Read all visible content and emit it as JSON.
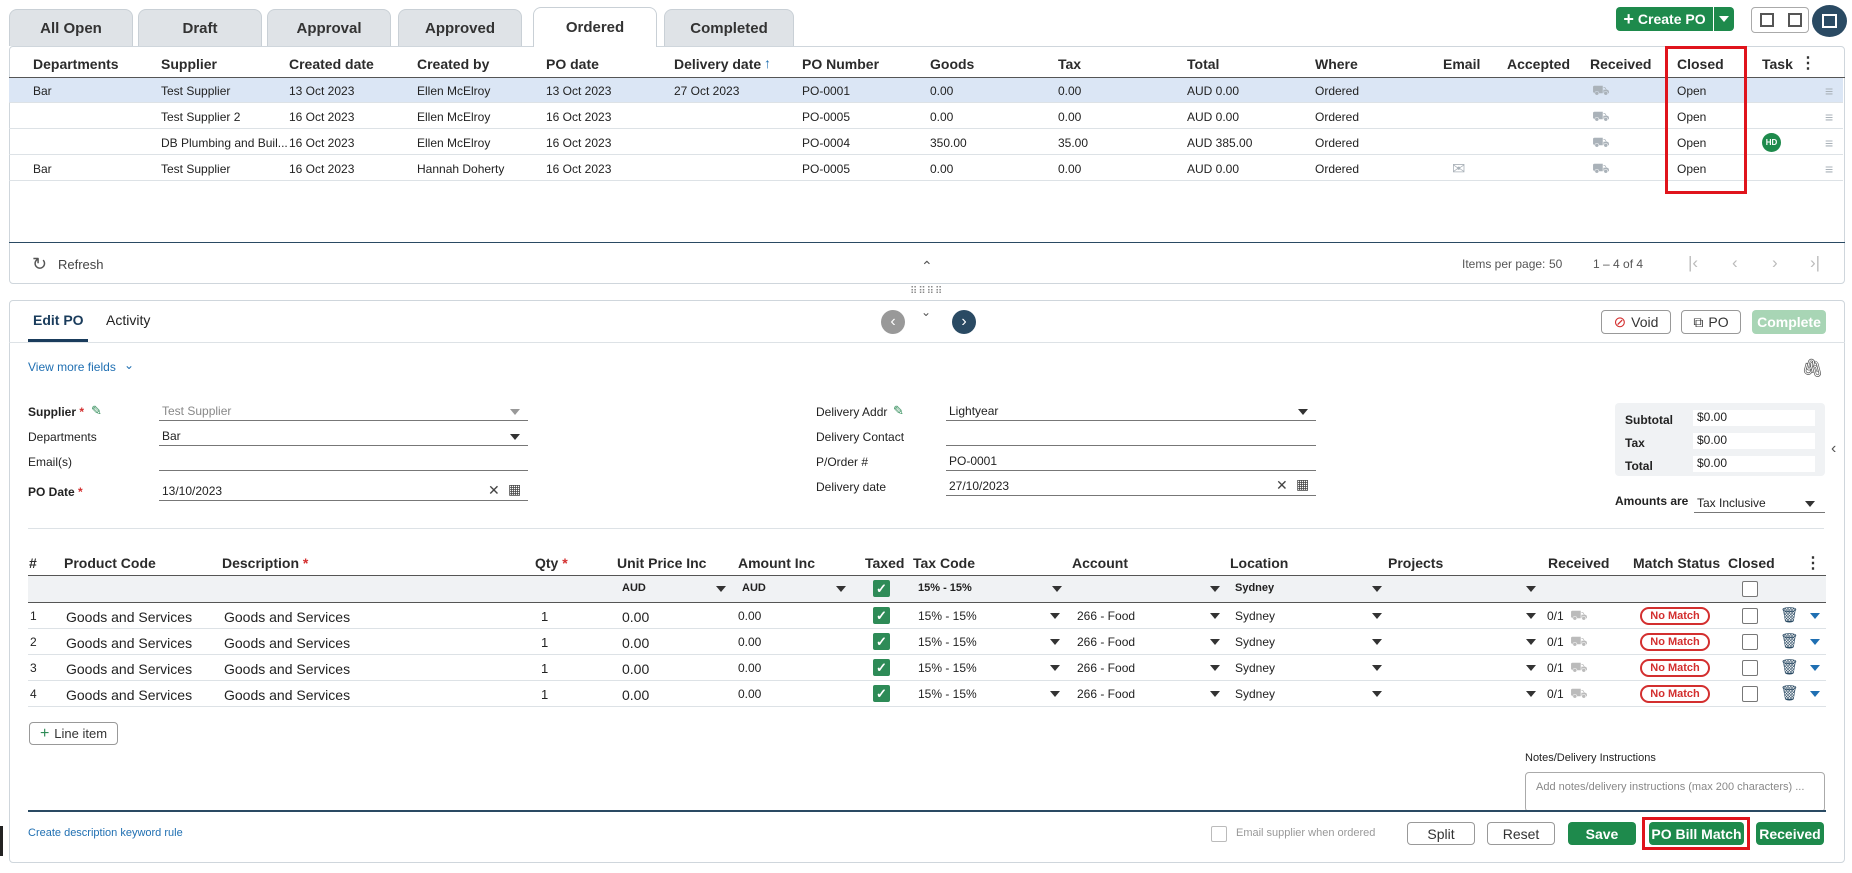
{
  "tabs": [
    "All Open",
    "Draft",
    "Approval",
    "Approved",
    "Ordered",
    "Completed"
  ],
  "active_tab": "Ordered",
  "create_po": "Create PO",
  "grid": {
    "headers": [
      "Departments",
      "Supplier",
      "Created date",
      "Created by",
      "PO date",
      "Delivery date",
      "PO Number",
      "Goods",
      "Tax",
      "Total",
      "Where",
      "Email",
      "Accepted",
      "Received",
      "Closed",
      "Task"
    ],
    "rows": [
      {
        "dept": "Bar",
        "supplier": "Test Supplier",
        "created": "13 Oct 2023",
        "by": "Ellen McElroy",
        "po_date": "13 Oct 2023",
        "delivery": "27 Oct 2023",
        "num": "PO-0001",
        "goods": "0.00",
        "tax": "0.00",
        "total": "AUD 0.00",
        "where": "Ordered",
        "closed": "Open",
        "task": ""
      },
      {
        "dept": "",
        "supplier": "Test Supplier 2",
        "created": "16 Oct 2023",
        "by": "Ellen McElroy",
        "po_date": "16 Oct 2023",
        "delivery": "",
        "num": "PO-0005",
        "goods": "0.00",
        "tax": "0.00",
        "total": "AUD 0.00",
        "where": "Ordered",
        "closed": "Open",
        "task": ""
      },
      {
        "dept": "",
        "supplier": "DB Plumbing and Buil...",
        "created": "16 Oct 2023",
        "by": "Ellen McElroy",
        "po_date": "16 Oct 2023",
        "delivery": "",
        "num": "PO-0004",
        "goods": "350.00",
        "tax": "35.00",
        "total": "AUD 385.00",
        "where": "Ordered",
        "closed": "Open",
        "task": "HD"
      },
      {
        "dept": "Bar",
        "supplier": "Test Supplier",
        "created": "16 Oct 2023",
        "by": "Hannah Doherty",
        "po_date": "16 Oct 2023",
        "delivery": "",
        "num": "PO-0005",
        "goods": "0.00",
        "tax": "0.00",
        "total": "AUD 0.00",
        "where": "Ordered",
        "closed": "Open",
        "task": ""
      }
    ],
    "refresh": "Refresh",
    "items_per_page": "Items per page:",
    "page_size": "50",
    "range": "1 – 4 of 4"
  },
  "edit": {
    "tab_edit": "Edit PO",
    "tab_activity": "Activity",
    "void": "Void",
    "po": "PO",
    "complete": "Complete",
    "view_more": "View more fields",
    "supplier_lbl": "Supplier",
    "supplier_val": "Test Supplier",
    "dept_lbl": "Departments",
    "dept_val": "Bar",
    "emails_lbl": "Email(s)",
    "podate_lbl": "PO Date",
    "podate_val": "13/10/2023",
    "deladdr_lbl": "Delivery Addr",
    "deladdr_val": "Lightyear",
    "delcontact_lbl": "Delivery Contact",
    "porder_lbl": "P/Order #",
    "porder_val": "PO-0001",
    "deldate_lbl": "Delivery date",
    "deldate_val": "27/10/2023",
    "subtotal_lbl": "Subtotal",
    "subtotal": "$0.00",
    "tax_lbl": "Tax",
    "tax": "$0.00",
    "total_lbl": "Total",
    "total": "$0.00",
    "amounts_lbl": "Amounts are",
    "amounts_val": "Tax Inclusive"
  },
  "lines": {
    "headers": [
      "#",
      "Product Code",
      "Description",
      "Qty",
      "Unit Price Inc",
      "Amount Inc",
      "Taxed",
      "Tax Code",
      "Account",
      "Location",
      "Projects",
      "Received",
      "Match Status",
      "Closed"
    ],
    "defaults": {
      "unit": "AUD",
      "amount": "AUD",
      "taxcode": "15% - 15%",
      "location": "Sydney"
    },
    "rows": [
      {
        "n": "1",
        "code": "Goods and Services",
        "desc": "Goods and Services",
        "qty": "1",
        "unit": "0.00",
        "amount": "0.00",
        "taxcode": "15% - 15%",
        "account": "266 - Food",
        "location": "Sydney",
        "received": "0/1",
        "match": "No Match"
      },
      {
        "n": "2",
        "code": "Goods and Services",
        "desc": "Goods and Services",
        "qty": "1",
        "unit": "0.00",
        "amount": "0.00",
        "taxcode": "15% - 15%",
        "account": "266 - Food",
        "location": "Sydney",
        "received": "0/1",
        "match": "No Match"
      },
      {
        "n": "3",
        "code": "Goods and Services",
        "desc": "Goods and Services",
        "qty": "1",
        "unit": "0.00",
        "amount": "0.00",
        "taxcode": "15% - 15%",
        "account": "266 - Food",
        "location": "Sydney",
        "received": "0/1",
        "match": "No Match"
      },
      {
        "n": "4",
        "code": "Goods and Services",
        "desc": "Goods and Services",
        "qty": "1",
        "unit": "0.00",
        "amount": "0.00",
        "taxcode": "15% - 15%",
        "account": "266 - Food",
        "location": "Sydney",
        "received": "0/1",
        "match": "No Match"
      }
    ],
    "add_line": "Line item"
  },
  "notes_lbl": "Notes/Delivery Instructions",
  "notes_placeholder": "Add notes/delivery instructions (max 200 characters) ...",
  "footer": {
    "keyword_rule": "Create description keyword rule",
    "email_supplier": "Email supplier when ordered",
    "split": "Split",
    "reset": "Reset",
    "save": "Save",
    "bill_match": "PO Bill Match",
    "received": "Received"
  },
  "colors": {
    "green": "#1e8a4c",
    "blue": "#1f6fb2",
    "red": "#e0141c",
    "nav": "#2a4a63"
  }
}
